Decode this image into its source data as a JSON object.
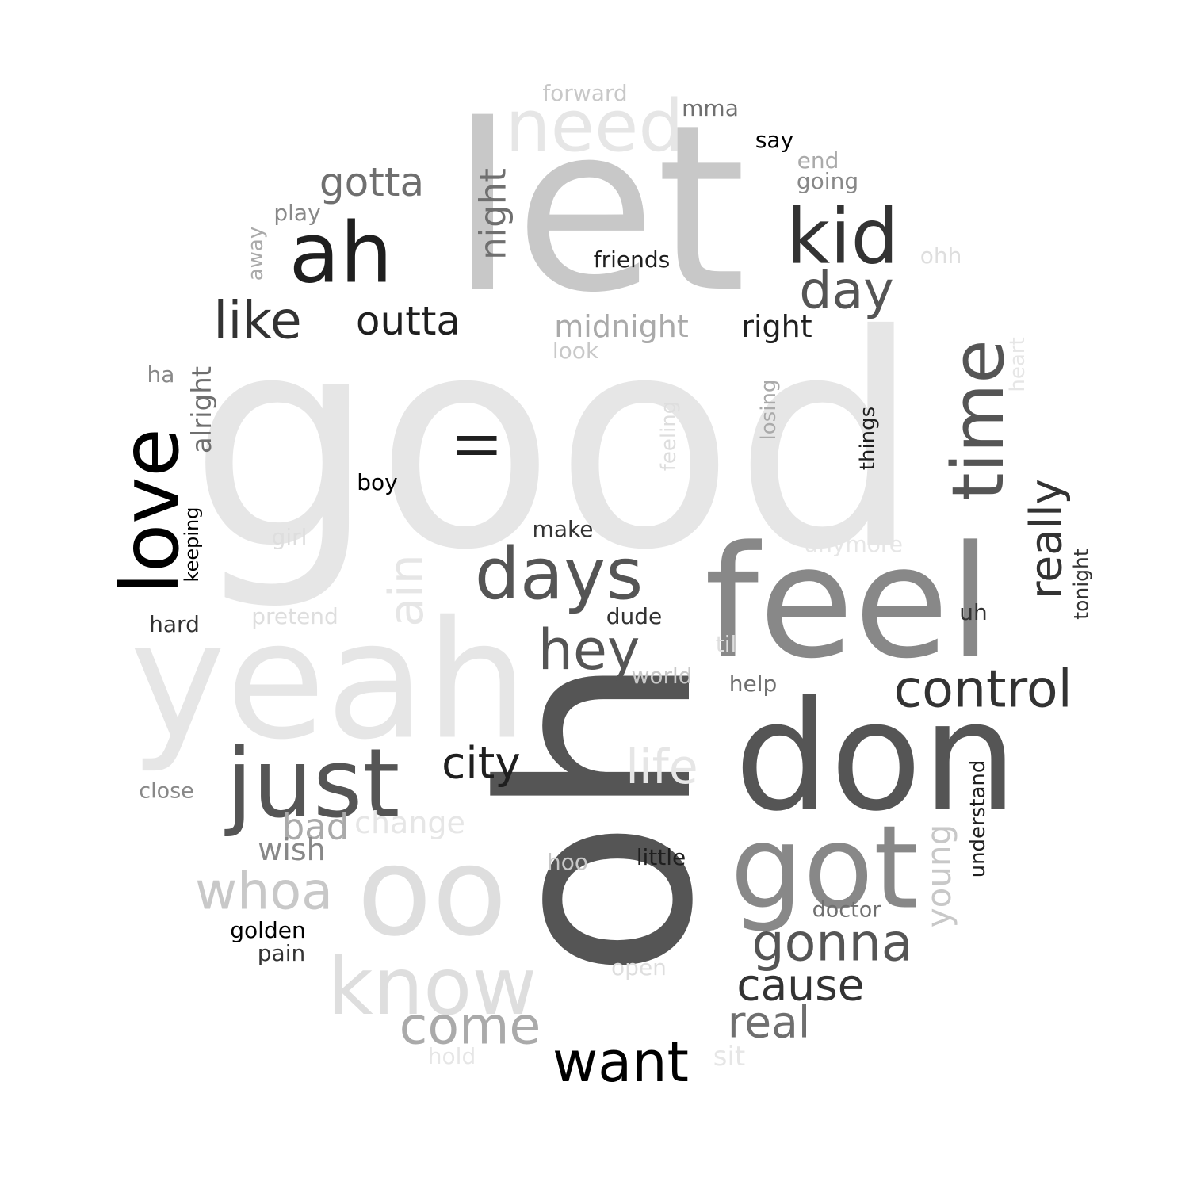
{
  "colors": {
    "background": "#ffffff",
    "black": "#000000",
    "near_black": "#1f1f1f",
    "dark": "#333333",
    "charcoal": "#555555",
    "gray": "#6f6f6f",
    "mid_gray": "#888888",
    "light_gray": "#aaaaaa",
    "silver": "#c8c8c8",
    "pale": "#dedede",
    "very_pale": "#e6e6e6"
  },
  "words": [
    {
      "text": "good",
      "color": "very_pale"
    },
    {
      "text": "let",
      "color": "silver"
    },
    {
      "text": "oh",
      "color": "charcoal"
    },
    {
      "text": "yeah",
      "color": "very_pale"
    },
    {
      "text": "feel",
      "color": "mid_gray"
    },
    {
      "text": "don",
      "color": "charcoal"
    },
    {
      "text": "oo",
      "color": "pale"
    },
    {
      "text": "just",
      "color": "charcoal"
    },
    {
      "text": "need",
      "color": "very_pale"
    },
    {
      "text": "got",
      "color": "mid_gray"
    },
    {
      "text": "know",
      "color": "pale"
    },
    {
      "text": "love",
      "color": "black"
    },
    {
      "text": "ah",
      "color": "near_black"
    },
    {
      "text": "kid",
      "color": "dark"
    },
    {
      "text": "days",
      "color": "charcoal"
    },
    {
      "text": "time",
      "color": "charcoal"
    },
    {
      "text": "control",
      "color": "dark"
    },
    {
      "text": "hey",
      "color": "charcoal"
    },
    {
      "text": "gonna",
      "color": "charcoal"
    },
    {
      "text": "want",
      "color": "black"
    },
    {
      "text": "day",
      "color": "charcoal"
    },
    {
      "text": "come",
      "color": "light_gray"
    },
    {
      "text": "like",
      "color": "dark"
    },
    {
      "text": "cause",
      "color": "dark"
    },
    {
      "text": "whoa",
      "color": "silver"
    },
    {
      "text": "really",
      "color": "dark"
    },
    {
      "text": "life",
      "color": "very_pale"
    },
    {
      "text": "city",
      "color": "near_black"
    },
    {
      "text": "ll",
      "color": "near_black"
    },
    {
      "text": "ain",
      "color": "very_pale"
    },
    {
      "text": "real",
      "color": "gray"
    },
    {
      "text": "outta",
      "color": "near_black"
    },
    {
      "text": "gotta",
      "color": "gray"
    },
    {
      "text": "night",
      "color": "gray"
    },
    {
      "text": "young",
      "color": "silver"
    },
    {
      "text": "bad",
      "color": "light_gray"
    },
    {
      "text": "midnight",
      "color": "light_gray"
    },
    {
      "text": "right",
      "color": "near_black"
    },
    {
      "text": "change",
      "color": "very_pale"
    },
    {
      "text": "wish",
      "color": "mid_gray"
    },
    {
      "text": "alright",
      "color": "gray"
    },
    {
      "text": "forward",
      "color": "silver"
    },
    {
      "text": "friends",
      "color": "near_black"
    },
    {
      "text": "understand",
      "color": "near_black"
    },
    {
      "text": "doctor",
      "color": "gray"
    },
    {
      "text": "little",
      "color": "near_black"
    },
    {
      "text": "golden",
      "color": "black"
    },
    {
      "text": "things",
      "color": "near_black"
    },
    {
      "text": "tonight",
      "color": "dark"
    },
    {
      "text": "going",
      "color": "mid_gray"
    },
    {
      "text": "feeling",
      "color": "pale"
    },
    {
      "text": "losing",
      "color": "light_gray"
    },
    {
      "text": "boy",
      "color": "black"
    },
    {
      "text": "play",
      "color": "mid_gray"
    },
    {
      "text": "pain",
      "color": "dark"
    },
    {
      "text": "heart",
      "color": "very_pale"
    },
    {
      "text": "hard",
      "color": "dark"
    },
    {
      "text": "pretend",
      "color": "pale"
    },
    {
      "text": "world",
      "color": "silver"
    },
    {
      "text": "help",
      "color": "gray"
    },
    {
      "text": "make",
      "color": "dark"
    },
    {
      "text": "dude",
      "color": "dark"
    },
    {
      "text": "anymore",
      "color": "very_pale"
    },
    {
      "text": "keeping",
      "color": "black"
    },
    {
      "text": "close",
      "color": "mid_gray"
    },
    {
      "text": "look",
      "color": "silver"
    },
    {
      "text": "say",
      "color": "black"
    },
    {
      "text": "mma",
      "color": "gray"
    },
    {
      "text": "end",
      "color": "light_gray"
    },
    {
      "text": "ohh",
      "color": "pale"
    },
    {
      "text": "away",
      "color": "light_gray"
    },
    {
      "text": "ha",
      "color": "mid_gray"
    },
    {
      "text": "girl",
      "color": "pale"
    },
    {
      "text": "til",
      "color": "pale"
    },
    {
      "text": "uh",
      "color": "dark"
    },
    {
      "text": "hoo",
      "color": "silver"
    },
    {
      "text": "open",
      "color": "pale"
    },
    {
      "text": "hold",
      "color": "very_pale"
    },
    {
      "text": "sit",
      "color": "very_pale"
    }
  ]
}
